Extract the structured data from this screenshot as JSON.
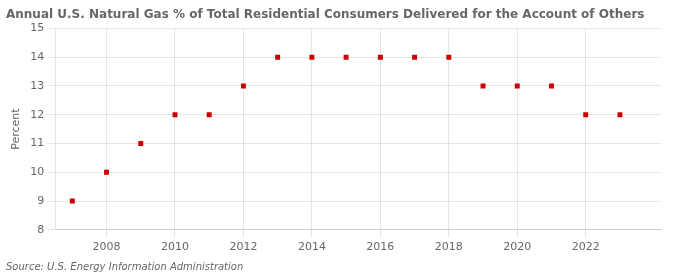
{
  "chart_data": {
    "type": "scatter",
    "title": "Annual U.S. Natural Gas % of Total Residential Consumers Delivered for the Account of Others",
    "ylabel": "Percent",
    "annotations": [
      "Source: U.S. Energy Information Administration"
    ],
    "x": [
      2007,
      2008,
      2009,
      2010,
      2011,
      2012,
      2013,
      2014,
      2015,
      2016,
      2017,
      2018,
      2019,
      2020,
      2021,
      2022,
      2023
    ],
    "values": [
      9,
      10,
      11,
      12,
      12,
      13,
      14,
      14,
      14,
      14,
      14,
      14,
      13,
      13,
      13,
      12,
      12
    ],
    "color": "#cc0000",
    "marker": "square",
    "xlim": [
      2006.5,
      2024.2
    ],
    "xticks": [
      2008,
      2010,
      2012,
      2014,
      2016,
      2018,
      2020,
      2022
    ],
    "ylim": [
      8,
      15
    ],
    "yticks": [
      8,
      9,
      10,
      11,
      12,
      13,
      14,
      15
    ],
    "grid": true
  }
}
